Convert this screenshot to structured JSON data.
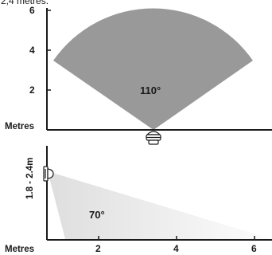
{
  "header_fragment": "2,4 metres.",
  "top_diagram": {
    "angle_label": "110°",
    "axis_title": "Metres",
    "y_ticks": [
      "6",
      "4",
      "2"
    ],
    "fill_color": "#999999",
    "axis_color": "#1a1a1a"
  },
  "bottom_diagram": {
    "angle_label": "70°",
    "axis_title": "Metres",
    "height_label": "1.8 - 2.4m",
    "x_ticks": [
      "2",
      "4",
      "6"
    ],
    "gradient_start": "#dedede",
    "gradient_end": "#fdfdfd",
    "axis_color": "#1a1a1a"
  }
}
